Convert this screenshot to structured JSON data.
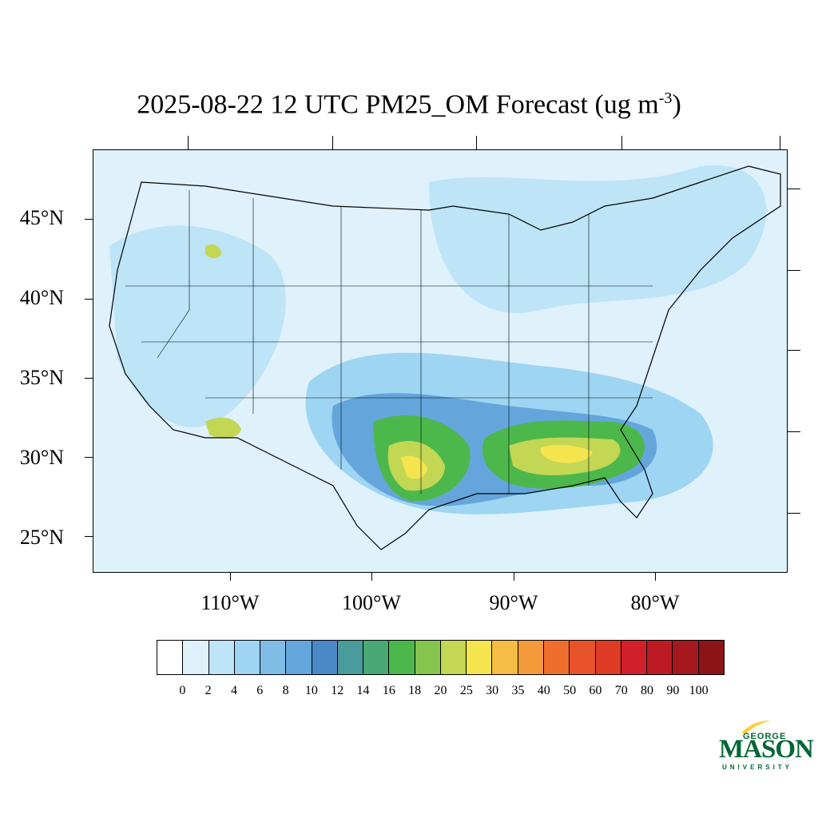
{
  "title": {
    "main": "2025-08-22 12 UTC PM25_OM Forecast (ug m",
    "superscript": "-3",
    "close": ")"
  },
  "map": {
    "latitude_labels": [
      "45°N",
      "40°N",
      "35°N",
      "30°N",
      "25°N"
    ],
    "longitude_labels": [
      "110°W",
      "100°W",
      "90°W",
      "80°W"
    ],
    "background_color": "#dff1fb"
  },
  "legend": {
    "colors": [
      "#ffffff",
      "#dff1fb",
      "#bde4f7",
      "#9dd5f3",
      "#80bde6",
      "#64a6db",
      "#4a88c8",
      "#4a9b9b",
      "#49a873",
      "#4cb84b",
      "#85c44e",
      "#c3d755",
      "#f4e54f",
      "#f6bd46",
      "#f39a3a",
      "#f06e2c",
      "#e85229",
      "#de3a24",
      "#d2202b",
      "#bd1b24",
      "#a5181d",
      "#8c1419"
    ],
    "labels": [
      "0",
      "2",
      "4",
      "6",
      "8",
      "10",
      "12",
      "14",
      "16",
      "18",
      "20",
      "25",
      "30",
      "35",
      "40",
      "50",
      "60",
      "70",
      "80",
      "90",
      "100"
    ]
  },
  "logo": {
    "top": "GEORGE",
    "main": "MASON",
    "bottom": "UNIVERSITY",
    "colors": {
      "green": "#006633",
      "gold": "#ffcc33"
    }
  }
}
